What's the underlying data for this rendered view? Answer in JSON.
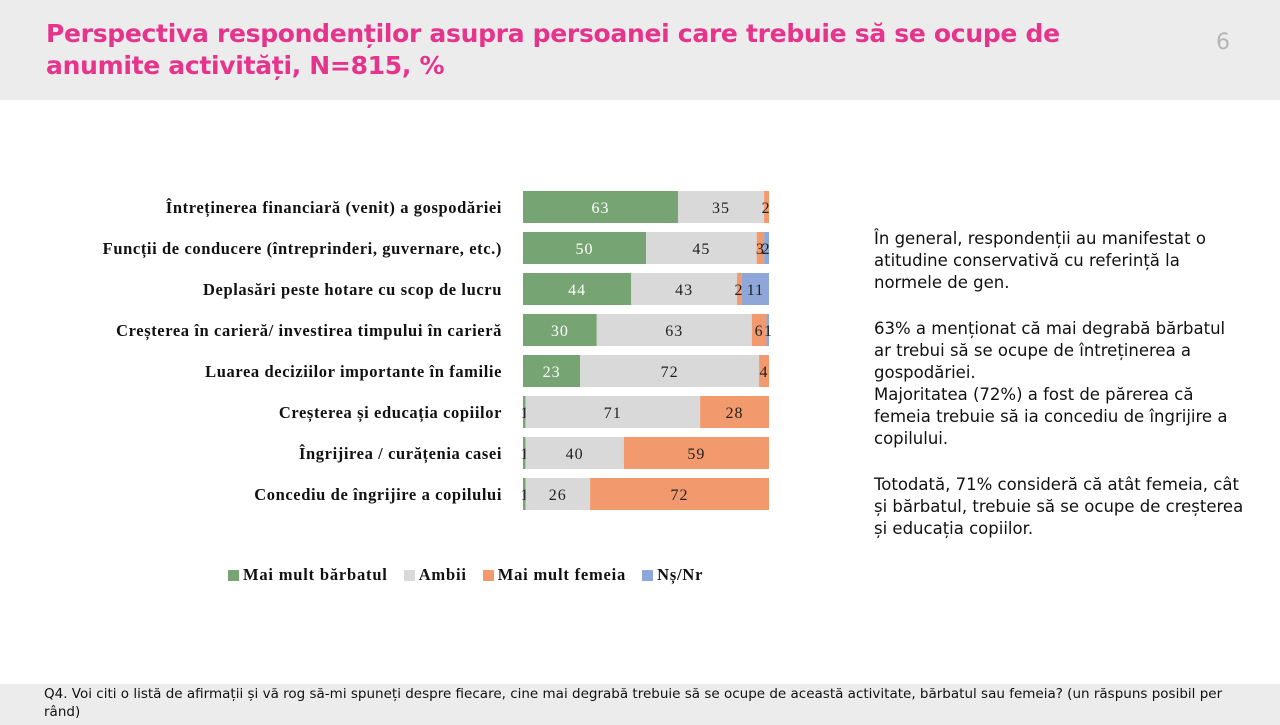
{
  "header": {
    "title": "Perspectiva respondenților asupra persoanei care trebuie să se ocupe de anumite activități, N=815, %",
    "page_number": "6"
  },
  "colors": {
    "barbatul": "#77a473",
    "ambii": "#d9d9d9",
    "femeia": "#f29a6e",
    "nsnr": "#8ea7d8"
  },
  "chart_data": {
    "type": "bar",
    "orientation": "horizontal",
    "stacked": true,
    "categories": [
      "Întreținerea financiară (venit) a gospodăriei",
      "Funcții de conducere (întreprinderi, guvernare, etc.)",
      "Deplasări peste hotare cu scop de lucru",
      "Creșterea în carieră/ investirea timpului în carieră",
      "Luarea deciziilor importante în familie",
      "Creșterea și educația copiilor",
      "Îngrijirea / curățenia casei",
      "Concediu de îngrijire a copilului"
    ],
    "series": [
      {
        "name": "Mai mult bărbatul",
        "color": "#77a473",
        "values": [
          63,
          50,
          44,
          30,
          23,
          1,
          1,
          1
        ]
      },
      {
        "name": "Ambii",
        "color": "#d9d9d9",
        "values": [
          35,
          45,
          43,
          63,
          72,
          71,
          40,
          26
        ]
      },
      {
        "name": "Mai mult femeia",
        "color": "#f29a6e",
        "values": [
          2,
          3,
          2,
          6,
          4,
          28,
          59,
          72
        ]
      },
      {
        "name": "Nș/Nr",
        "color": "#8ea7d8",
        "values": [
          0,
          2,
          11,
          1,
          0,
          0,
          0,
          0
        ]
      }
    ],
    "xlim": [
      0,
      100
    ],
    "legend_position": "bottom",
    "grid": false
  },
  "commentary": {
    "p1": "În general, respondenții au manifestat o atitudine conservativă cu referință la normele de gen.",
    "p2a": "63% a menționat că mai degrabă bărbatul ar trebui să se ocupe de întreținerea a gospodăriei.",
    "p2b": "Majoritatea (72%) a fost de părerea că femeia trebuie să ia concediu de îngrijire a copilului.",
    "p3": "Totodată, 71% consideră că atât femeia, cât și bărbatul, trebuie să se ocupe de creșterea și educația copiilor."
  },
  "footnote": "Q4. Voi citi o listă de afirmații și vă rog să-mi spuneți despre fiecare, cine mai degrabă trebuie să se ocupe de această activitate, bărbatul sau femeia? (un răspuns posibil per rând)"
}
